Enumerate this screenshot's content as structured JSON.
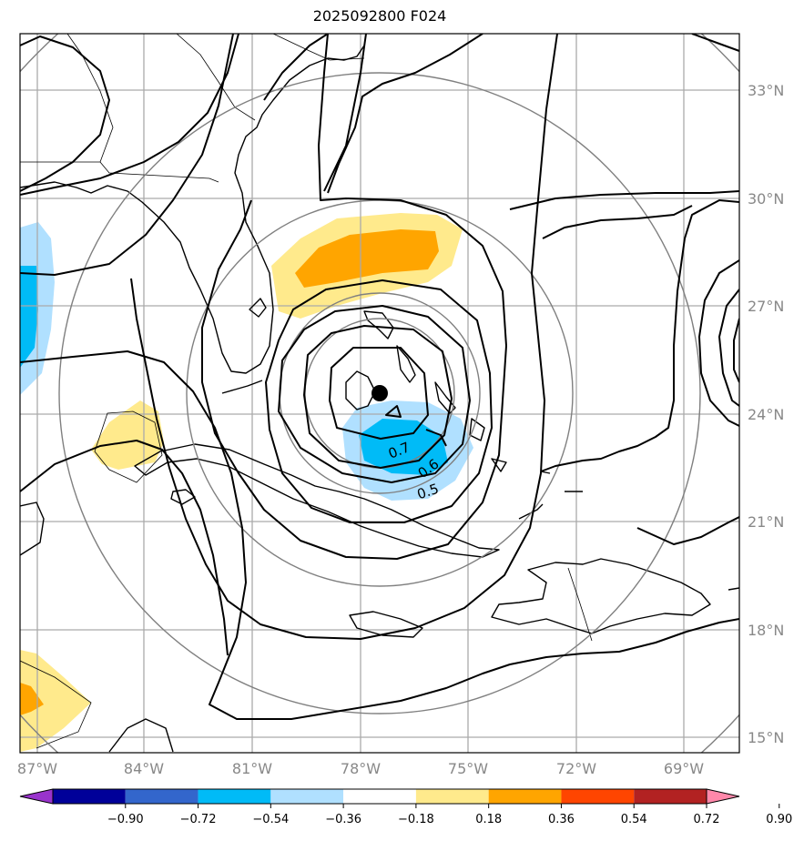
{
  "title": "2025092800 F024",
  "lon_labels": [
    "87°W",
    "84°W",
    "81°W",
    "78°W",
    "75°W",
    "72°W",
    "69°W"
  ],
  "lat_labels": [
    "33°N",
    "30°N",
    "27°N",
    "24°N",
    "21°N",
    "18°N",
    "15°N"
  ],
  "contour_labels": [
    "0.7",
    "0.6",
    "0.5"
  ],
  "colorbar": {
    "colors": [
      "#9933cc",
      "#000099",
      "#3366cc",
      "#00bbf7",
      "#b0e0ff",
      "#ffffff",
      "#ffea8c",
      "#ffa500",
      "#ff4500",
      "#b22222",
      "#ff88aa"
    ],
    "ticks": [
      "−0.90",
      "−0.72",
      "−0.54",
      "−0.36",
      "−0.18",
      "0.18",
      "0.36",
      "0.54",
      "0.72",
      "0.90"
    ]
  },
  "colors": {
    "orange": "#ffa500",
    "light_yellow": "#ffea8c",
    "cyan": "#00bbf7",
    "light_blue": "#b0e0ff"
  }
}
